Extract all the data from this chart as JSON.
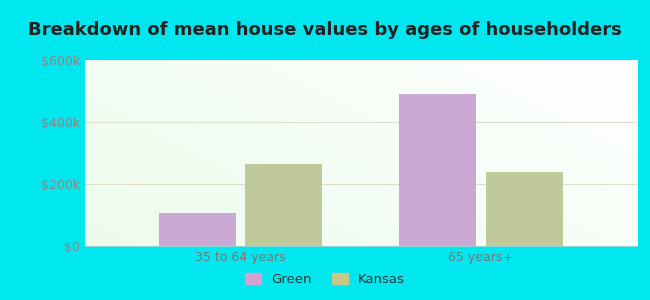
{
  "title": "Breakdown of mean house values by ages of householders",
  "categories": [
    "35 to 64 years",
    "65 years+"
  ],
  "green_values": [
    105000,
    490000
  ],
  "kansas_values": [
    265000,
    238000
  ],
  "bar_color_green": "#c9a8d4",
  "bar_color_kansas": "#bfc99a",
  "ylim": [
    0,
    600000
  ],
  "yticks": [
    0,
    200000,
    400000,
    600000
  ],
  "ytick_labels": [
    "$0",
    "$200k",
    "$400k",
    "$600k"
  ],
  "legend_green_label": "Green",
  "legend_kansas_label": "Kansas",
  "background_outer": "#00e8ef",
  "title_fontsize": 13,
  "tick_fontsize": 9,
  "bar_width": 0.32,
  "legend_marker_color_green": "#d4a0d0",
  "legend_marker_color_kansas": "#c8c888"
}
